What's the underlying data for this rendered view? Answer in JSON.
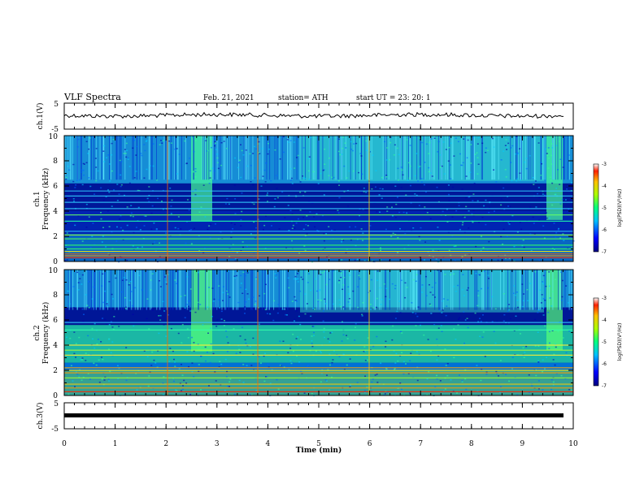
{
  "header": {
    "title": "VLF Spectra",
    "date": "Feb. 21, 2021",
    "station": "station= ATH",
    "start": "start  UT =   23: 20: 1"
  },
  "chart_data": {
    "type": "heatmap",
    "x": {
      "label": "Time  (min)",
      "range": [
        0,
        10
      ],
      "ticks": [
        "0",
        "1",
        "2",
        "3",
        "4",
        "5",
        "6",
        "7",
        "8",
        "9",
        "10"
      ]
    },
    "panels": [
      {
        "id": "ch1v",
        "kind": "line",
        "ylabel": "ch.1(V)",
        "ylim": [
          -5,
          5
        ],
        "ticks": [
          "5",
          "-5"
        ]
      },
      {
        "id": "ch1",
        "kind": "spectrogram",
        "ylabel_top": "ch.1",
        "ylabel": "Frequency  (kHz)",
        "ylim": [
          0,
          10
        ],
        "ticks": [
          "0",
          "2",
          "4",
          "6",
          "8",
          "10"
        ],
        "colorbar": {
          "label": "log(PSD)(V²/Hz)",
          "range": [
            -7,
            -3
          ],
          "ticks": [
            "-3",
            "-4",
            "-5",
            "-6",
            "-7"
          ]
        }
      },
      {
        "id": "ch2",
        "kind": "spectrogram",
        "ylabel_top": "ch.2",
        "ylabel": "Frequency  (kHz)",
        "ylim": [
          0,
          10
        ],
        "ticks": [
          "0",
          "2",
          "4",
          "6",
          "8",
          "10"
        ],
        "colorbar": {
          "label": "log(PSD)(V²/Hz)",
          "range": [
            -7,
            -3
          ],
          "ticks": [
            "-3",
            "-4",
            "-5",
            "-6",
            "-7"
          ]
        }
      },
      {
        "id": "ch3v",
        "kind": "line",
        "ylabel": "ch.3(V)",
        "ylim": [
          -5,
          5
        ],
        "ticks": [
          "5",
          "-5"
        ]
      }
    ],
    "colors": {
      "frame": "#000000",
      "lowest": "#00007a",
      "highest": "#ff0000"
    }
  }
}
